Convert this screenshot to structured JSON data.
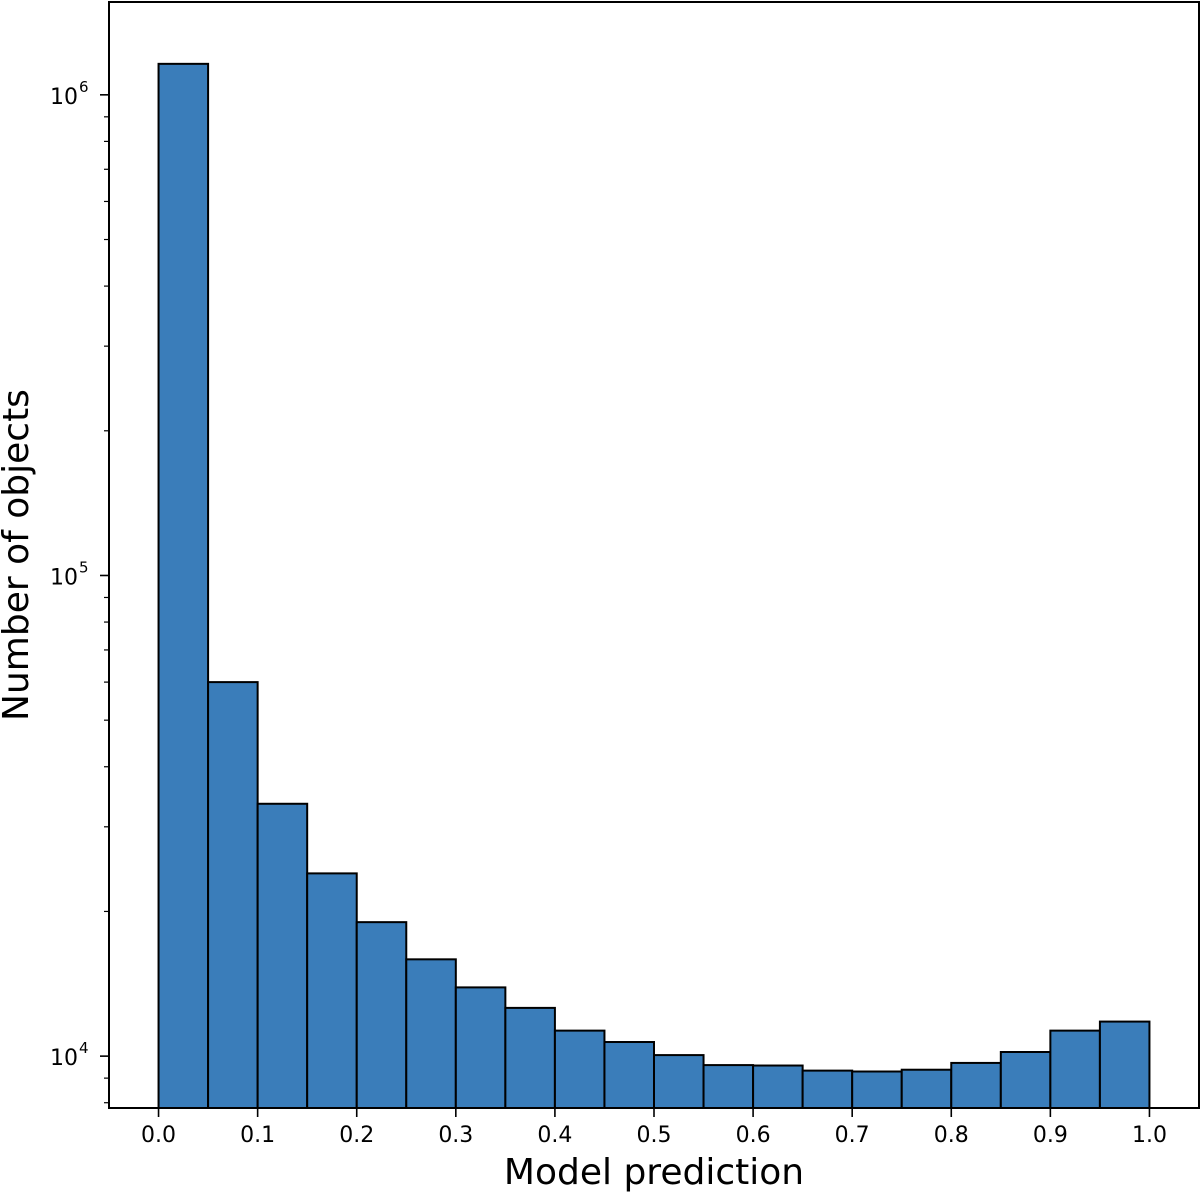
{
  "chart_data": {
    "type": "bar",
    "title": "",
    "xlabel": "Model prediction",
    "ylabel": "Number of objects",
    "yscale": "log",
    "bin_edges": [
      0.0,
      0.05,
      0.1,
      0.15,
      0.2,
      0.25,
      0.3,
      0.35,
      0.4,
      0.45,
      0.5,
      0.55,
      0.6,
      0.65,
      0.7,
      0.75,
      0.8,
      0.85,
      0.9,
      0.95,
      1.0
    ],
    "values": [
      1160000,
      60000,
      33500,
      24000,
      19000,
      15900,
      13900,
      12600,
      11300,
      10700,
      10050,
      9580,
      9560,
      9330,
      9290,
      9370,
      9680,
      10200,
      11300,
      11800
    ],
    "xlim": [
      -0.05,
      1.05
    ],
    "ylim": [
      7800,
      1560000
    ],
    "xticks": [
      0.0,
      0.1,
      0.2,
      0.3,
      0.4,
      0.5,
      0.6,
      0.7,
      0.8,
      0.9,
      1.0
    ],
    "xtick_labels": [
      "0.0",
      "0.1",
      "0.2",
      "0.3",
      "0.4",
      "0.5",
      "0.6",
      "0.7",
      "0.8",
      "0.9",
      "1.0"
    ],
    "yticks": [
      10000,
      100000,
      1000000
    ],
    "ytick_labels": [
      {
        "base": "10",
        "exponent": "4"
      },
      {
        "base": "10",
        "exponent": "5"
      },
      {
        "base": "10",
        "exponent": "6"
      }
    ],
    "bar_color": "#3a7dba",
    "edge_color": "#000000",
    "grid": false,
    "legend": "none"
  }
}
